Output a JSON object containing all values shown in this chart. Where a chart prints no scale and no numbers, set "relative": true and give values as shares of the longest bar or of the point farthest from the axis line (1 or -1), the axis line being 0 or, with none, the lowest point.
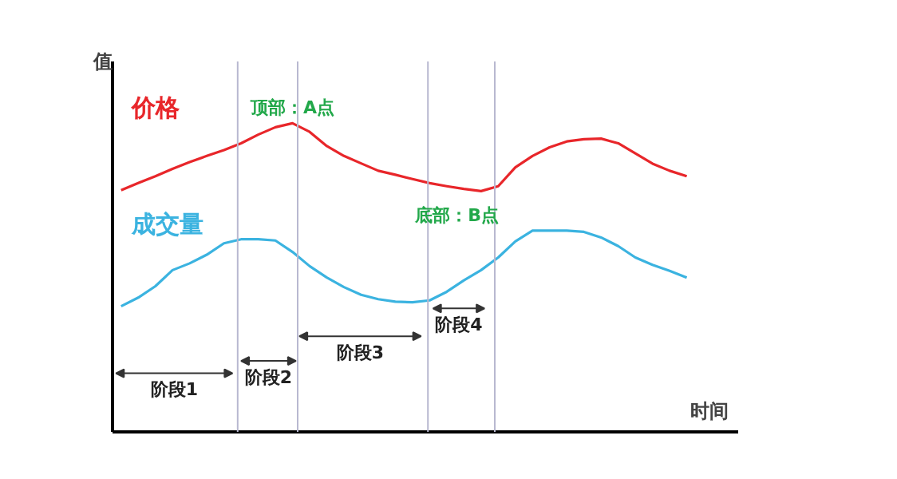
{
  "chart_data": {
    "type": "line",
    "relative": true,
    "xlabel": "时间",
    "ylabel": "值",
    "categories": [
      null,
      null,
      null,
      null,
      null,
      null,
      null,
      null,
      null,
      null,
      null,
      null,
      null,
      null,
      null,
      null,
      null,
      null,
      null,
      null,
      null,
      null,
      null,
      null,
      null,
      null,
      null,
      null,
      null,
      null,
      null,
      null,
      null,
      null
    ],
    "series": [
      {
        "name": "价格",
        "color": "#e8262a",
        "values": [
          0.783,
          0.806,
          0.828,
          0.852,
          0.874,
          0.894,
          0.913,
          0.935,
          0.963,
          0.987,
          1.0,
          0.972,
          0.926,
          0.894,
          0.87,
          0.846,
          0.833,
          0.819,
          0.806,
          0.796,
          0.787,
          0.78,
          0.796,
          0.857,
          0.894,
          0.922,
          0.941,
          0.948,
          0.95,
          0.935,
          0.902,
          0.869,
          0.846,
          0.828
        ]
      },
      {
        "name": "成交量",
        "color": "#3bb3e0",
        "values": [
          0.407,
          0.435,
          0.472,
          0.524,
          0.546,
          0.574,
          0.611,
          0.624,
          0.624,
          0.62,
          0.583,
          0.537,
          0.5,
          0.469,
          0.444,
          0.43,
          0.422,
          0.42,
          0.426,
          0.454,
          0.491,
          0.524,
          0.565,
          0.617,
          0.652,
          0.652,
          0.652,
          0.648,
          0.63,
          0.602,
          0.565,
          0.541,
          0.522,
          0.5
        ]
      }
    ],
    "annotations": [
      "顶部：A点",
      "底部：B点",
      "阶段1",
      "阶段2",
      "阶段3",
      "阶段4"
    ],
    "tick_labels": false,
    "legend": false,
    "marker": "none",
    "line_style": "solid"
  }
}
